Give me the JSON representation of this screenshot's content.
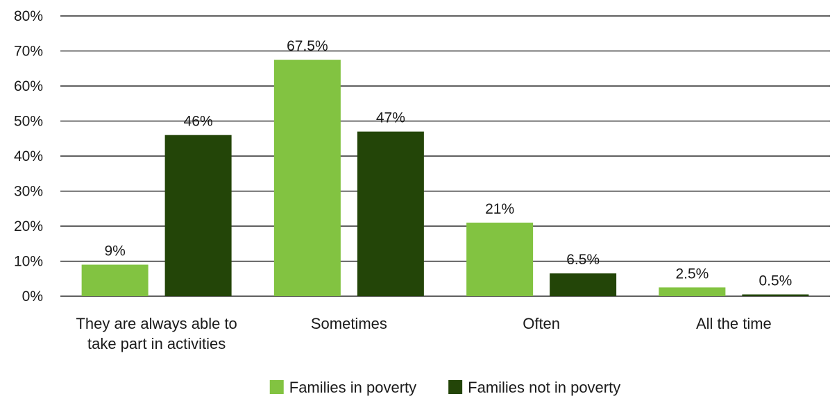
{
  "chart_data": {
    "type": "bar",
    "title": "",
    "xlabel": "",
    "ylabel": "",
    "ylim": [
      0,
      80
    ],
    "ytick_step": 10,
    "ytick_suffix": "%",
    "grid": true,
    "legend_position": "bottom-center",
    "categories": [
      [
        "They are always able to",
        "take part in activities"
      ],
      [
        "Sometimes"
      ],
      [
        "Often"
      ],
      [
        "All the time"
      ]
    ],
    "series": [
      {
        "name": "Families in poverty",
        "color": "#82C341",
        "values": [
          9,
          67.5,
          21,
          2.5
        ],
        "labels": [
          "9%",
          "67.5%",
          "21%",
          "2.5%"
        ]
      },
      {
        "name": "Families not in poverty",
        "color": "#234508",
        "values": [
          46,
          47,
          6.5,
          0.5
        ],
        "labels": [
          "46%",
          "47%",
          "6.5%",
          "0.5%"
        ]
      }
    ]
  }
}
